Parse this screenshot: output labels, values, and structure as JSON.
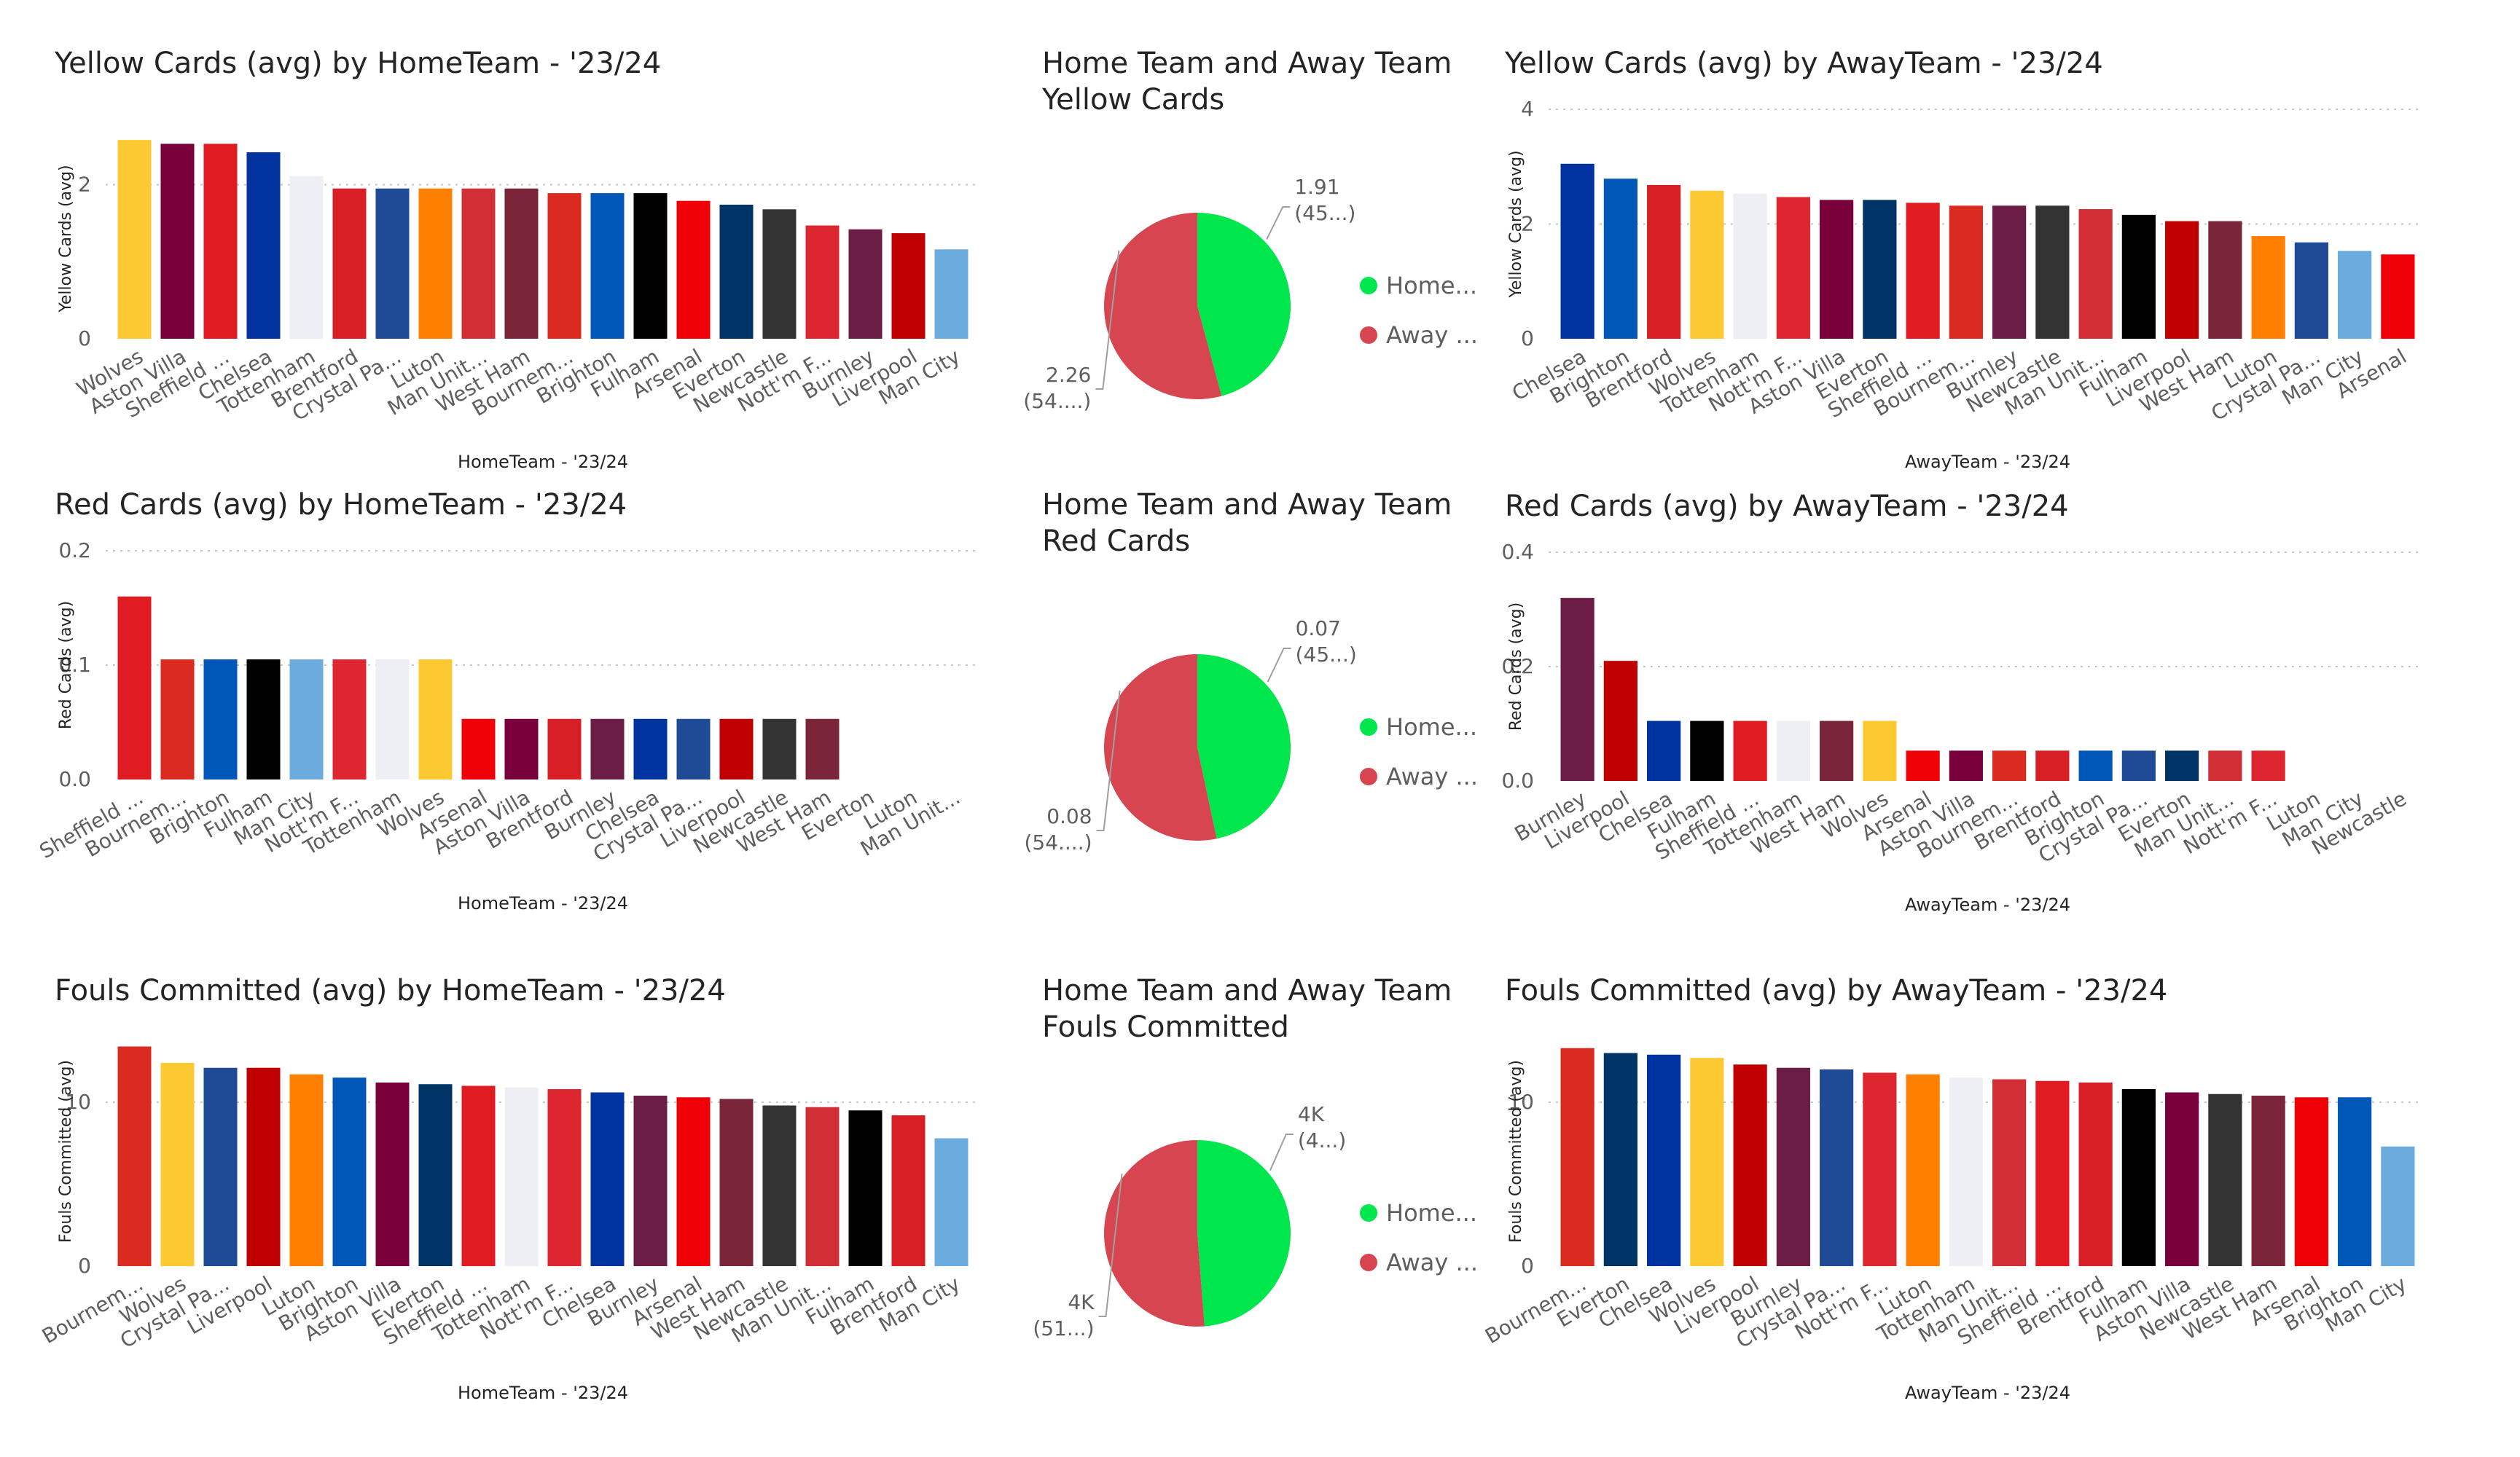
{
  "colors": {
    "home": "#00E64D",
    "away": "#D64550",
    "grid": "#C8C6C4",
    "text": "#252423",
    "label": "#605E5C",
    "teams": {
      "Wolves": "#FDC932",
      "Aston Villa": "#7A003C",
      "Sheffield ...": "#E01B22",
      "Chelsea": "#0033A0",
      "Tottenham": "#EEEEF5",
      "Brentford": "#D81F26",
      "Crystal Pa...": "#1F4A96",
      "Luton": "#FF8000",
      "Man Unit...": "#D22E35",
      "West Ham": "#7A2638",
      "Bournem...": "#DB2A20",
      "Brighton": "#0057B8",
      "Fulham": "#000000",
      "Arsenal": "#EF0107",
      "Everton": "#003366",
      "Newcastle": "#333333",
      "Nott'm F...": "#DD2630",
      "Burnley": "#6C1D45",
      "Liverpool": "#C00000",
      "Man City": "#6CABDD"
    }
  },
  "chart_data": [
    {
      "type": "bar",
      "title": "Yellow Cards (avg) by HomeTeam - '23/24",
      "xlabel": "HomeTeam - '23/24",
      "ylabel": "Yellow Cards (avg)",
      "ylim": [
        0,
        2.6
      ],
      "yticks": [
        0,
        2
      ],
      "grid": true,
      "categories": [
        "Wolves",
        "Aston Villa",
        "Sheffield ...",
        "Chelsea",
        "Tottenham",
        "Brentford",
        "Crystal Pa...",
        "Luton",
        "Man Unit...",
        "West Ham",
        "Bournem...",
        "Brighton",
        "Fulham",
        "Arsenal",
        "Everton",
        "Newcastle",
        "Nott'm F...",
        "Burnley",
        "Liverpool",
        "Man City"
      ],
      "values": [
        2.58,
        2.53,
        2.53,
        2.42,
        2.11,
        1.95,
        1.95,
        1.95,
        1.95,
        1.95,
        1.89,
        1.89,
        1.89,
        1.79,
        1.74,
        1.68,
        1.47,
        1.42,
        1.37,
        1.16
      ]
    },
    {
      "type": "pie",
      "title": "Home Team and Away Team\nYellow Cards",
      "legend": [
        "Home...",
        "Away ..."
      ],
      "values": [
        1.91,
        2.26
      ],
      "labels": [
        [
          "1.91",
          "(45...)"
        ],
        [
          "2.26",
          "(54....)"
        ]
      ]
    },
    {
      "type": "bar",
      "title": "Yellow Cards (avg) by AwayTeam - '23/24",
      "xlabel": "AwayTeam - '23/24",
      "ylabel": "Yellow Cards (avg)",
      "ylim": [
        0,
        4
      ],
      "yticks": [
        0,
        2,
        4
      ],
      "grid": true,
      "categories": [
        "Chelsea",
        "Brighton",
        "Brentford",
        "Wolves",
        "Tottenham",
        "Nott'm F...",
        "Aston Villa",
        "Everton",
        "Sheffield ...",
        "Bournem...",
        "Burnley",
        "Newcastle",
        "Man Unit...",
        "Fulham",
        "Liverpool",
        "West Ham",
        "Luton",
        "Crystal Pa...",
        "Man City",
        "Arsenal"
      ],
      "values": [
        3.05,
        2.79,
        2.68,
        2.58,
        2.53,
        2.47,
        2.42,
        2.42,
        2.37,
        2.32,
        2.32,
        2.32,
        2.26,
        2.16,
        2.05,
        2.05,
        1.79,
        1.68,
        1.53,
        1.47
      ]
    },
    {
      "type": "bar",
      "title": "Red Cards (avg) by HomeTeam - '23/24",
      "xlabel": "HomeTeam - '23/24",
      "ylabel": "Red Cards (avg)",
      "ylim": [
        0,
        0.2
      ],
      "yticks": [
        0.0,
        0.1,
        0.2
      ],
      "yformat": 1,
      "grid": true,
      "categories": [
        "Sheffield ...",
        "Bournem...",
        "Brighton",
        "Fulham",
        "Man City",
        "Nott'm F...",
        "Tottenham",
        "Wolves",
        "Arsenal",
        "Aston Villa",
        "Brentford",
        "Burnley",
        "Chelsea",
        "Crystal Pa...",
        "Liverpool",
        "Newcastle",
        "West Ham",
        "Everton",
        "Luton",
        "Man Unit..."
      ],
      "values": [
        0.16,
        0.105,
        0.105,
        0.105,
        0.105,
        0.105,
        0.105,
        0.105,
        0.053,
        0.053,
        0.053,
        0.053,
        0.053,
        0.053,
        0.053,
        0.053,
        0.053,
        0,
        0,
        0
      ]
    },
    {
      "type": "pie",
      "title": "Home Team and Away Team\nRed Cards",
      "legend": [
        "Home...",
        "Away ..."
      ],
      "values": [
        0.07,
        0.08
      ],
      "labels": [
        [
          "0.07",
          "(45...)"
        ],
        [
          "0.08",
          "(54....)"
        ]
      ]
    },
    {
      "type": "bar",
      "title": "Red Cards (avg) by AwayTeam - '23/24",
      "xlabel": "AwayTeam - '23/24",
      "ylabel": "Red Cards (avg)",
      "ylim": [
        0,
        0.4
      ],
      "yticks": [
        0.0,
        0.2,
        0.4
      ],
      "yformat": 1,
      "grid": true,
      "categories": [
        "Burnley",
        "Liverpool",
        "Chelsea",
        "Fulham",
        "Sheffield ...",
        "Tottenham",
        "West Ham",
        "Wolves",
        "Arsenal",
        "Aston Villa",
        "Bournem...",
        "Brentford",
        "Brighton",
        "Crystal Pa...",
        "Everton",
        "Man Unit...",
        "Nott'm F...",
        "Luton",
        "Man City",
        "Newcastle"
      ],
      "values": [
        0.32,
        0.21,
        0.105,
        0.105,
        0.105,
        0.105,
        0.105,
        0.105,
        0.053,
        0.053,
        0.053,
        0.053,
        0.053,
        0.053,
        0.053,
        0.053,
        0.053,
        0,
        0,
        0
      ]
    },
    {
      "type": "bar",
      "title": "Fouls Committed (avg) by HomeTeam - '23/24",
      "xlabel": "HomeTeam - '23/24",
      "ylabel": "Fouls Committed (avg)",
      "ylim": [
        0,
        14
      ],
      "yticks": [
        0,
        10
      ],
      "grid": true,
      "categories": [
        "Bournem...",
        "Wolves",
        "Crystal Pa...",
        "Liverpool",
        "Luton",
        "Brighton",
        "Aston Villa",
        "Everton",
        "Sheffield ...",
        "Tottenham",
        "Nott'm F...",
        "Chelsea",
        "Burnley",
        "Arsenal",
        "West Ham",
        "Newcastle",
        "Man Unit...",
        "Fulham",
        "Brentford",
        "Man City"
      ],
      "values": [
        13.4,
        12.4,
        12.1,
        12.1,
        11.7,
        11.5,
        11.2,
        11.1,
        11.0,
        10.9,
        10.8,
        10.6,
        10.4,
        10.3,
        10.2,
        9.8,
        9.7,
        9.5,
        9.2,
        7.8
      ]
    },
    {
      "type": "pie",
      "title": "Home Team and Away Team\nFouls Committed",
      "legend": [
        "Home...",
        "Away ..."
      ],
      "values": [
        4.0,
        4.2
      ],
      "labels": [
        [
          "4K",
          "(4...)"
        ],
        [
          "4K",
          "(51...)"
        ]
      ]
    },
    {
      "type": "bar",
      "title": "Fouls Committed (avg) by AwayTeam - '23/24",
      "xlabel": "AwayTeam - '23/24",
      "ylabel": "Fouls Committed (avg)",
      "ylim": [
        0,
        14
      ],
      "yticks": [
        0,
        10
      ],
      "grid": true,
      "categories": [
        "Bournem...",
        "Everton",
        "Chelsea",
        "Wolves",
        "Liverpool",
        "Burnley",
        "Crystal Pa...",
        "Nott'm F...",
        "Luton",
        "Tottenham",
        "Man Unit...",
        "Sheffield ...",
        "Brentford",
        "Fulham",
        "Aston Villa",
        "Newcastle",
        "West Ham",
        "Arsenal",
        "Brighton",
        "Man City"
      ],
      "values": [
        13.3,
        13.0,
        12.9,
        12.7,
        12.3,
        12.1,
        12.0,
        11.8,
        11.7,
        11.5,
        11.4,
        11.3,
        11.2,
        10.8,
        10.6,
        10.5,
        10.4,
        10.3,
        10.3,
        7.3
      ]
    }
  ]
}
